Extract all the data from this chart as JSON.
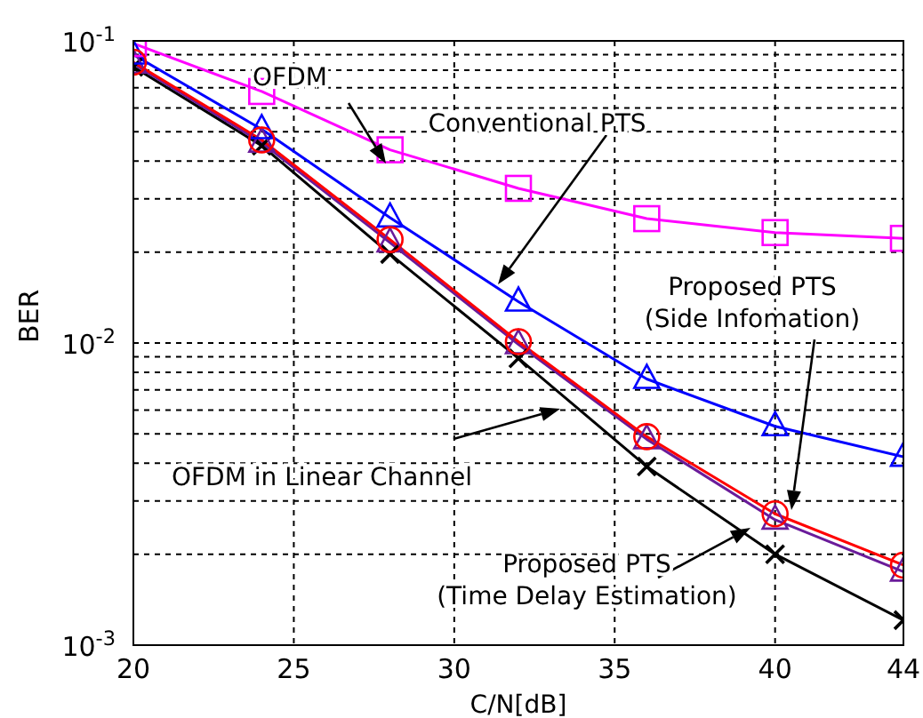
{
  "chart_data": {
    "type": "line",
    "xlabel": "C/N[dB]",
    "ylabel": "BER",
    "log": "y",
    "grid": true,
    "line_style": "solid",
    "x": [
      20,
      24,
      28,
      32,
      36,
      40,
      44
    ],
    "xlim": [
      20,
      44
    ],
    "xticks": [
      20,
      25,
      30,
      35,
      40,
      44
    ],
    "ylim": [
      0.001,
      0.1
    ],
    "yticks": [
      {
        "value": 0.001,
        "label": "10$^{-3}$"
      },
      {
        "value": 0.002,
        "label": null
      },
      {
        "value": 0.003,
        "label": null
      },
      {
        "value": 0.004,
        "label": null
      },
      {
        "value": 0.005,
        "label": null
      },
      {
        "value": 0.006,
        "label": null
      },
      {
        "value": 0.007,
        "label": null
      },
      {
        "value": 0.008,
        "label": null
      },
      {
        "value": 0.009,
        "label": null
      },
      {
        "value": 0.01,
        "label": "10$^{-2}$"
      },
      {
        "value": 0.02,
        "label": null
      },
      {
        "value": 0.03,
        "label": null
      },
      {
        "value": 0.04,
        "label": null
      },
      {
        "value": 0.05,
        "label": null
      },
      {
        "value": 0.06,
        "label": null
      },
      {
        "value": 0.07,
        "label": null
      },
      {
        "value": 0.08,
        "label": null
      },
      {
        "value": 0.09,
        "label": null
      },
      {
        "value": 0.1,
        "label": "10$^{-1}$"
      }
    ],
    "series": [
      {
        "color": "#000000",
        "marker": "cross",
        "values": [
          0.082,
          0.045,
          0.0197,
          0.0089,
          0.0039,
          0.002,
          0.00121
        ]
      },
      {
        "color": "#6a1b9a",
        "marker": "triangle",
        "values": [
          0.084,
          0.046,
          0.0215,
          0.0099,
          0.0048,
          0.0026,
          0.00175
        ]
      },
      {
        "color": "#0000ff",
        "marker": "triangle",
        "values": [
          0.09,
          0.051,
          0.026,
          0.0137,
          0.0076,
          0.0053,
          0.0042
        ]
      },
      {
        "color": "#ff00ff",
        "marker": "square",
        "values": [
          0.098,
          0.068,
          0.0436,
          0.0325,
          0.0258,
          0.0232,
          0.0222
        ]
      },
      {
        "color": "#ff0000",
        "marker": "circle",
        "values": [
          0.085,
          0.047,
          0.022,
          0.0101,
          0.0049,
          0.00272,
          0.00184
        ]
      }
    ],
    "annotations": [
      "OFDM",
      "Conventional PTS",
      "Proposed PTS\n(Side Infomation)",
      "OFDM in Linear Channel",
      "Proposed PTS\n(Time Delay Estimation)"
    ]
  }
}
